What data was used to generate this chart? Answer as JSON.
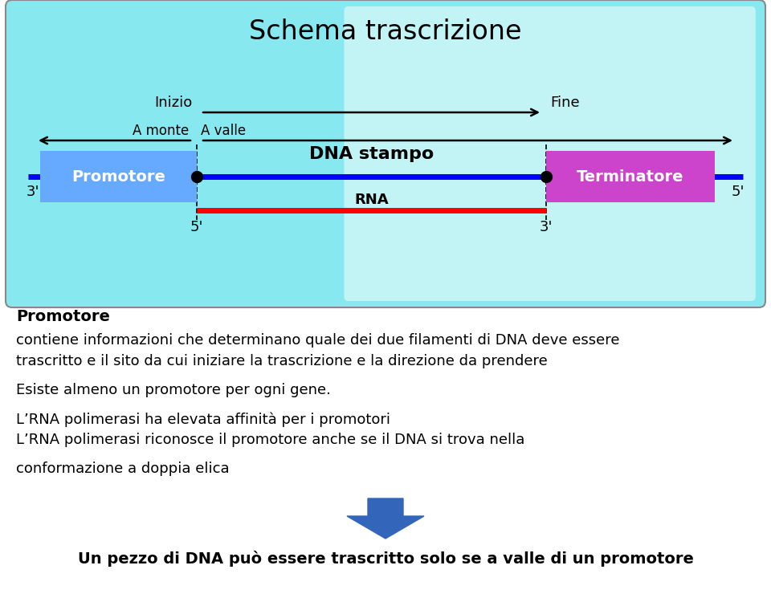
{
  "title": "Schema trascrizione",
  "bg_box_color": "#aaeeff",
  "promotore_color": "#6699ff",
  "promotore_label": "Promotore",
  "terminatore_color": "#dd44cc",
  "terminatore_label": "Terminatore",
  "dna_stampo_label": "DNA stampo",
  "rna_label": "RNA",
  "inizio_label": "Inizio",
  "fine_label": "Fine",
  "a_monte_label": "A monte",
  "a_valle_label": "A valle",
  "label_3prime_left": "3'",
  "label_5prime_right": "5'",
  "label_5prime_bottom": "5'",
  "label_3prime_bottom": "3'",
  "text_block_title": "Promotore",
  "text_lines": [
    {
      "text": "contiene informazioni che determinano quale dei due filamenti di DNA deve essere",
      "bold": false
    },
    {
      "text": "trascritto e il sito da cui iniziare la trascrizione e la direzione da prendere",
      "bold": false
    },
    {
      "text": "Esiste almeno un promotore per ogni gene.",
      "bold": false
    },
    {
      "text": "L’RNA polimerasi ha elevata affinità per i promotori",
      "bold": false
    },
    {
      "text": "L’RNA polimerasi riconosce il promotore anche se il DNA si trova nella",
      "bold": false
    },
    {
      "text": "conformazione a doppia elica",
      "bold": false
    }
  ],
  "bottom_text": "Un pezzo di DNA può essere trascritto solo se a valle di un promotore",
  "arrow_color": "#3366bb"
}
